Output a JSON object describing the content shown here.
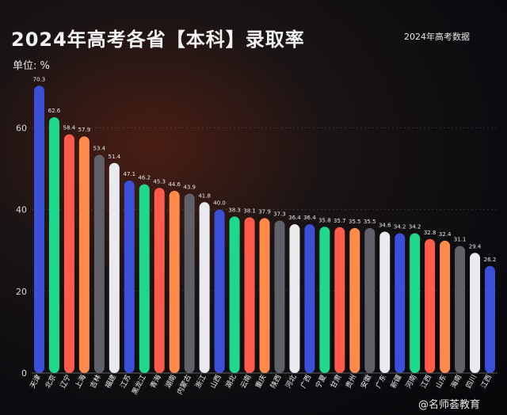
{
  "header": {
    "title": "2024年高考各省【本科】录取率",
    "source": "2024年高考数据",
    "unit": "单位: %"
  },
  "watermark": "@名师荟教育",
  "chart_data": {
    "type": "bar",
    "title": "2024年高考各省【本科】录取率",
    "ylabel": "单位: %",
    "ylim": [
      0,
      75
    ],
    "yticks": [
      0,
      20,
      40,
      60
    ],
    "grid": true,
    "categories": [
      "天津",
      "北京",
      "辽宁",
      "上海",
      "吉林",
      "福建",
      "江苏",
      "黑龙江",
      "青海",
      "湖南",
      "内蒙古",
      "浙江",
      "山西",
      "湖北",
      "云南",
      "重庆",
      "陕西",
      "河北",
      "广西",
      "宁夏",
      "甘肃",
      "贵州",
      "安徽",
      "广东",
      "新疆",
      "河南",
      "江西",
      "山东",
      "海南",
      "四川",
      "江西"
    ],
    "values": [
      70.3,
      62.6,
      58.4,
      57.9,
      53.4,
      51.4,
      47.1,
      46.2,
      45.3,
      44.6,
      43.9,
      41.8,
      40.0,
      38.3,
      38.1,
      37.9,
      37.3,
      36.4,
      36.4,
      35.8,
      35.7,
      35.5,
      35.5,
      34.6,
      34.2,
      34.2,
      32.8,
      32.4,
      31.1,
      29.4,
      26.2
    ],
    "value_labels": [
      "70.3",
      "62.6",
      "58.4",
      "57.9",
      "53.4",
      "51.4",
      "47.1",
      "46.2",
      "45.3",
      "44.6",
      "43.9",
      "41.8",
      "40.0",
      "38.3",
      "38.1",
      "37.9",
      "37.3",
      "36.4",
      "36.4",
      "35.8",
      "35.7",
      "35.5",
      "35.5",
      "34.6",
      "34.2",
      "34.2",
      "32.8",
      "32.4",
      "31.1",
      "29.4",
      "26.2"
    ],
    "colors": [
      "#3b4fd9",
      "#1ed98c",
      "#ff5a4a",
      "#ff8a4a",
      "#606068",
      "#e9e9ee",
      "#3b4fd9",
      "#1ed98c",
      "#ff5a4a",
      "#ff8a4a",
      "#606068",
      "#e9e9ee",
      "#3b4fd9",
      "#1ed98c",
      "#ff5a4a",
      "#ff8a4a",
      "#606068",
      "#e9e9ee",
      "#3b4fd9",
      "#1ed98c",
      "#ff5a4a",
      "#ff8a4a",
      "#606068",
      "#e9e9ee",
      "#3b4fd9",
      "#1ed98c",
      "#ff5a4a",
      "#ff8a4a",
      "#606068",
      "#e9e9ee",
      "#3b4fd9"
    ]
  }
}
